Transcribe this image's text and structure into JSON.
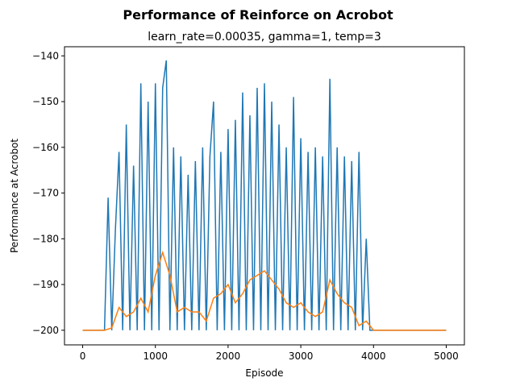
{
  "chart_data": {
    "type": "line",
    "title": "Performance of Reinforce on Acrobot",
    "subtitle": "learn_rate=0.00035, gamma=1, temp=3",
    "x_label": "Episode",
    "y_label": "Performance at Acrobot",
    "xlim": [
      -250,
      5250
    ],
    "ylim": [
      -203.2,
      -138
    ],
    "xticks": [
      0,
      1000,
      2000,
      3000,
      4000,
      5000
    ],
    "yticks": [
      {
        "value": -140,
        "label": "−140"
      },
      {
        "value": -150,
        "label": "−150"
      },
      {
        "value": -160,
        "label": "−160"
      },
      {
        "value": -170,
        "label": "−170"
      },
      {
        "value": -180,
        "label": "−180"
      },
      {
        "value": -190,
        "label": "−190"
      },
      {
        "value": -200,
        "label": "−200"
      }
    ],
    "series": [
      {
        "color": "#1f77b4",
        "x": [
          0,
          50,
          100,
          150,
          200,
          250,
          300,
          350,
          400,
          450,
          500,
          550,
          600,
          650,
          700,
          750,
          800,
          850,
          900,
          950,
          1000,
          1050,
          1100,
          1150,
          1200,
          1250,
          1300,
          1350,
          1400,
          1450,
          1500,
          1550,
          1600,
          1650,
          1700,
          1750,
          1800,
          1850,
          1900,
          1950,
          2000,
          2050,
          2100,
          2150,
          2200,
          2250,
          2300,
          2350,
          2400,
          2450,
          2500,
          2550,
          2600,
          2650,
          2700,
          2750,
          2800,
          2850,
          2900,
          2950,
          3000,
          3050,
          3100,
          3150,
          3200,
          3250,
          3300,
          3350,
          3400,
          3450,
          3500,
          3550,
          3600,
          3650,
          3700,
          3750,
          3800,
          3850,
          3900,
          3950,
          4000,
          4050,
          4100,
          4150,
          4200,
          4250,
          4300,
          4350,
          4400,
          4450,
          4500,
          4550,
          4600,
          4650,
          4700,
          4750,
          4800,
          4850,
          4900,
          4950,
          5000
        ],
        "values": [
          -200,
          -200,
          -200,
          -200,
          -200,
          -200,
          -200,
          -171,
          -200,
          -178,
          -161,
          -200,
          -155,
          -200,
          -164,
          -200,
          -146,
          -200,
          -150,
          -200,
          -146,
          -200,
          -147,
          -141,
          -200,
          -160,
          -200,
          -162,
          -200,
          -166,
          -200,
          -163,
          -200,
          -160,
          -200,
          -162,
          -150,
          -200,
          -161,
          -200,
          -156,
          -200,
          -154,
          -200,
          -148,
          -200,
          -153,
          -200,
          -147,
          -200,
          -146,
          -200,
          -150,
          -200,
          -155,
          -200,
          -160,
          -200,
          -149,
          -200,
          -158,
          -200,
          -161,
          -200,
          -160,
          -200,
          -162,
          -200,
          -145,
          -200,
          -160,
          -200,
          -162,
          -200,
          -163,
          -200,
          -161,
          -200,
          -180,
          -200,
          -200,
          -200,
          -200,
          -200,
          -200,
          -200,
          -200,
          -200,
          -200,
          -200,
          -200,
          -200,
          -200,
          -200,
          -200,
          -200,
          -200,
          -200,
          -200,
          -200,
          -200
        ]
      },
      {
        "color": "#ff7f0e",
        "x": [
          0,
          100,
          200,
          300,
          400,
          500,
          600,
          700,
          800,
          900,
          1000,
          1100,
          1200,
          1300,
          1400,
          1500,
          1600,
          1700,
          1800,
          1900,
          2000,
          2100,
          2200,
          2300,
          2400,
          2500,
          2600,
          2700,
          2800,
          2900,
          3000,
          3100,
          3200,
          3300,
          3400,
          3500,
          3600,
          3700,
          3800,
          3900,
          4000,
          4100,
          4200,
          4300,
          4400,
          4500,
          4600,
          4700,
          4800,
          4900,
          5000
        ],
        "values": [
          -200,
          -200,
          -200,
          -200,
          -199.5,
          -195,
          -197,
          -196,
          -193,
          -196,
          -188,
          -183,
          -188,
          -196,
          -195,
          -196,
          -196,
          -198,
          -193,
          -192,
          -190,
          -194,
          -192,
          -189,
          -188,
          -187,
          -189,
          -191,
          -194,
          -195,
          -194,
          -196,
          -197,
          -196,
          -189,
          -192,
          -194,
          -195,
          -199,
          -198,
          -200,
          -200,
          -200,
          -200,
          -200,
          -200,
          -200,
          -200,
          -200,
          -200,
          -200
        ]
      }
    ]
  }
}
